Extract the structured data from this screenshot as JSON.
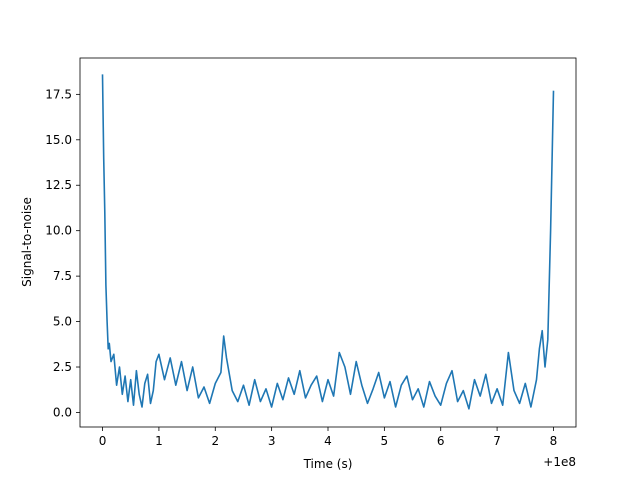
{
  "chart_data": {
    "type": "line",
    "title": "",
    "xlabel": "Time (s)",
    "ylabel": "Signal-to-noise",
    "x_offset_label": "+1e8",
    "xlim": [
      -0.4,
      8.4
    ],
    "ylim": [
      -0.8,
      19.5
    ],
    "x_ticks": [
      0,
      1,
      2,
      3,
      4,
      5,
      6,
      7,
      8
    ],
    "x_tick_labels": [
      "0",
      "1",
      "2",
      "3",
      "4",
      "5",
      "6",
      "7",
      "8"
    ],
    "y_ticks": [
      0.0,
      2.5,
      5.0,
      7.5,
      10.0,
      12.5,
      15.0,
      17.5
    ],
    "y_tick_labels": [
      "0.0",
      "2.5",
      "5.0",
      "7.5",
      "10.0",
      "12.5",
      "15.0",
      "17.5"
    ],
    "grid": false,
    "line_color": "#1f77b4",
    "series": [
      {
        "x": [
          0.0,
          0.02,
          0.04,
          0.06,
          0.08,
          0.1,
          0.12,
          0.15,
          0.2,
          0.25,
          0.3,
          0.35,
          0.4,
          0.45,
          0.5,
          0.55,
          0.6,
          0.65,
          0.7,
          0.75,
          0.8,
          0.85,
          0.9,
          0.95,
          1.0,
          1.1,
          1.2,
          1.3,
          1.4,
          1.5,
          1.6,
          1.7,
          1.8,
          1.9,
          2.0,
          2.1,
          2.15,
          2.2,
          2.3,
          2.4,
          2.5,
          2.6,
          2.7,
          2.8,
          2.9,
          3.0,
          3.1,
          3.2,
          3.3,
          3.4,
          3.5,
          3.6,
          3.7,
          3.8,
          3.9,
          4.0,
          4.1,
          4.2,
          4.3,
          4.4,
          4.5,
          4.6,
          4.7,
          4.8,
          4.9,
          5.0,
          5.1,
          5.2,
          5.3,
          5.4,
          5.5,
          5.6,
          5.7,
          5.8,
          5.9,
          6.0,
          6.1,
          6.2,
          6.3,
          6.4,
          6.5,
          6.6,
          6.7,
          6.8,
          6.9,
          7.0,
          7.1,
          7.2,
          7.3,
          7.4,
          7.5,
          7.6,
          7.7,
          7.75,
          7.8,
          7.85,
          7.9,
          7.95,
          7.98,
          8.0
        ],
        "y": [
          18.6,
          14.0,
          11.0,
          7.0,
          5.0,
          3.5,
          3.8,
          2.8,
          3.2,
          1.5,
          2.5,
          1.0,
          2.0,
          0.6,
          1.8,
          0.4,
          2.3,
          1.0,
          0.3,
          1.6,
          2.1,
          0.5,
          1.2,
          2.8,
          3.2,
          1.8,
          3.0,
          1.5,
          2.8,
          1.2,
          2.5,
          0.8,
          1.4,
          0.5,
          1.6,
          2.2,
          4.2,
          3.0,
          1.2,
          0.6,
          1.5,
          0.4,
          1.8,
          0.6,
          1.3,
          0.3,
          1.6,
          0.7,
          1.9,
          1.0,
          2.3,
          0.8,
          1.5,
          2.0,
          0.6,
          1.8,
          0.9,
          3.3,
          2.5,
          1.0,
          2.8,
          1.5,
          0.5,
          1.3,
          2.2,
          0.8,
          1.7,
          0.3,
          1.5,
          2.0,
          0.7,
          1.3,
          0.3,
          1.7,
          0.9,
          0.4,
          1.6,
          2.3,
          0.6,
          1.2,
          0.2,
          1.8,
          0.9,
          2.1,
          0.5,
          1.3,
          0.4,
          3.3,
          1.2,
          0.5,
          1.6,
          0.3,
          1.8,
          3.5,
          4.5,
          2.5,
          4.0,
          10.0,
          14.5,
          17.7
        ]
      }
    ]
  }
}
